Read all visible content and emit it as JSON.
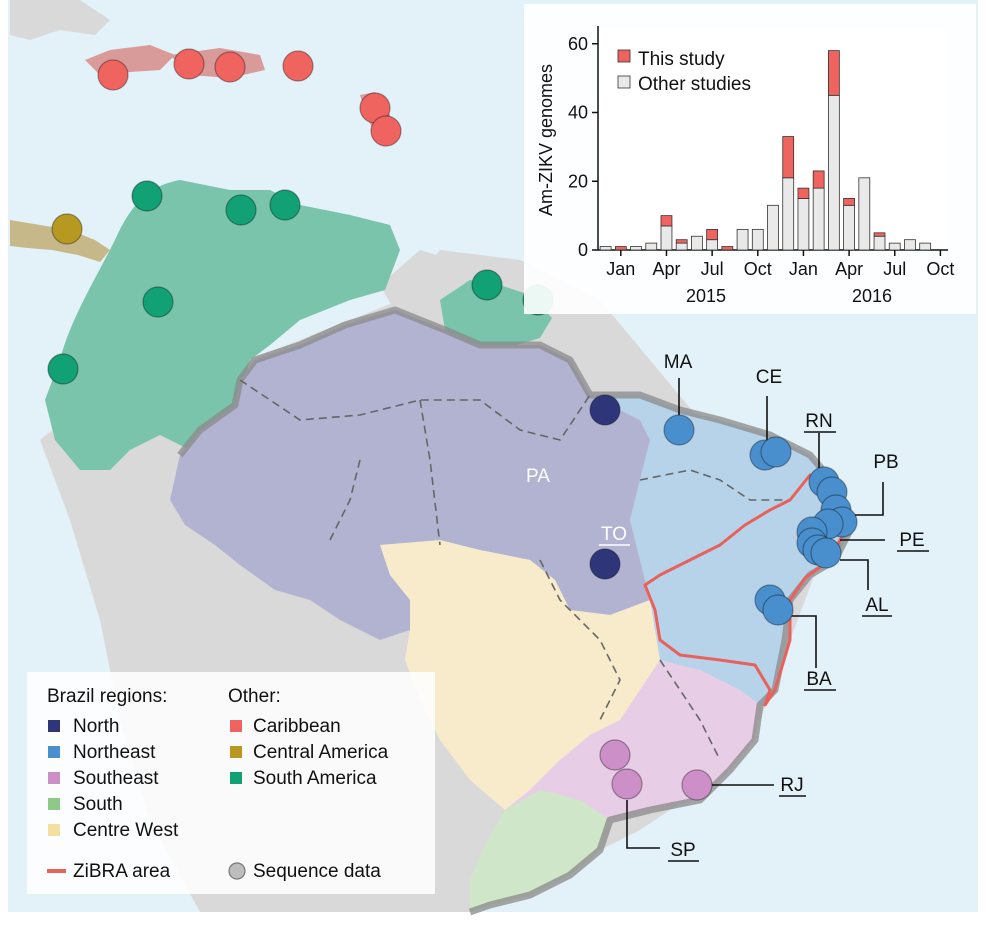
{
  "colors": {
    "ocean": "#e3f1f8",
    "land_other": "#d9d9d9",
    "north": "#b2b3d1",
    "northeast": "#b7d3ea",
    "southeast": "#e8cde6",
    "south": "#cfe7c8",
    "centre_west": "#f8ebcc",
    "south_america": "#79c4ab",
    "central_america": "#c6b889",
    "caribbean": "#d99a9a",
    "zibra": "#e8615a",
    "brazil_border": "#8a8a8a",
    "dot_north": "#2e3679",
    "dot_northeast": "#4a8fcd",
    "dot_southeast": "#cc8fc7",
    "dot_caribbean": "#f0645f",
    "dot_central_america": "#b79922",
    "dot_south_america": "#12a075",
    "bar_this_study": "#f0645f",
    "bar_other": "#e9e9e9"
  },
  "map_labels": {
    "PA": "PA",
    "TO": "TO",
    "MA": "MA",
    "CE": "CE",
    "RN": "RN",
    "PB": "PB",
    "PE": "PE",
    "AL": "AL",
    "BA": "BA",
    "RJ": "RJ",
    "SP": "SP"
  },
  "legend": {
    "brazil_title": "Brazil regions:",
    "other_title": "Other:",
    "brazil_items": [
      "North",
      "Northeast",
      "Southeast",
      "South",
      "Centre West"
    ],
    "other_items": [
      "Caribbean",
      "Central America",
      "South America"
    ],
    "zibra_label": "ZiBRA area",
    "sequence_label": "Sequence data"
  },
  "chart_data": {
    "type": "bar",
    "stacked": true,
    "ylabel": "Am-ZIKV genomes",
    "ylim": [
      0,
      64
    ],
    "yticks": [
      0,
      20,
      40,
      60
    ],
    "categories": [
      "Dec 2014",
      "Jan 2015",
      "Feb 2015",
      "Mar 2015",
      "Apr 2015",
      "May 2015",
      "Jun 2015",
      "Jul 2015",
      "Aug 2015",
      "Sep 2015",
      "Oct 2015",
      "Nov 2015",
      "Dec 2015",
      "Jan 2016",
      "Feb 2016",
      "Mar 2016",
      "Apr 2016",
      "May 2016",
      "Jun 2016",
      "Jul 2016",
      "Aug 2016",
      "Sep 2016",
      "Oct 2016"
    ],
    "x_tick_labels": [
      "Jan",
      "Apr",
      "Jul",
      "Oct",
      "Jan",
      "Apr",
      "Jul",
      "Oct"
    ],
    "x_tick_months": [
      1,
      4,
      7,
      10,
      13,
      16,
      19,
      22
    ],
    "year_labels": [
      "2015",
      "2016"
    ],
    "series": [
      {
        "name": "Other studies",
        "values": [
          1,
          0,
          1,
          2,
          7,
          2,
          4,
          3,
          0,
          6,
          6,
          13,
          21,
          15,
          18,
          45,
          13,
          21,
          4,
          2,
          3,
          2,
          0
        ]
      },
      {
        "name": "This study",
        "values": [
          0,
          1,
          0,
          0,
          3,
          1,
          0,
          3,
          1,
          0,
          0,
          0,
          12,
          3,
          5,
          13,
          2,
          0,
          1,
          0,
          0,
          0,
          0
        ]
      }
    ],
    "legend": [
      "This study",
      "Other studies"
    ]
  }
}
